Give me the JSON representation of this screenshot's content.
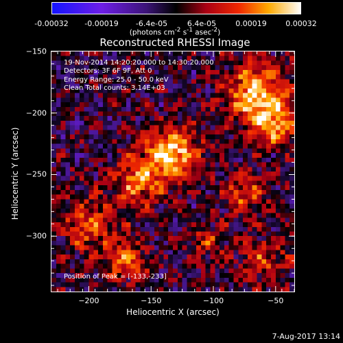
{
  "colorbar": {
    "tick_labels": [
      "-0.00032",
      "-0.00019",
      "-6.4e-05",
      "6.4e-05",
      "0.00019",
      "0.00032"
    ],
    "units_html": "(photons cm<sup>-2</sup> s<sup>-1</sup> asec<sup>-2</sup>)"
  },
  "chart_data": {
    "type": "heatmap",
    "title": "Reconstructed RHESSI Image",
    "xlabel": "Heliocentric X (arcsec)",
    "ylabel": "Heliocentric Y (arcsec)",
    "xlim": [
      -230,
      -35
    ],
    "ylim": [
      -345,
      -150
    ],
    "x_ticks": [
      -200,
      -150,
      -100,
      -50
    ],
    "y_ticks": [
      -150,
      -200,
      -250,
      -300
    ],
    "colorbar_range": [
      -0.00032,
      0.00032
    ],
    "peak": [
      -133,
      -233
    ],
    "annotations": [
      "19-Nov-2014 14:20:20.000 to 14:30:20.000",
      "Detectors: 3F 6F 9F, Att 0",
      "Energy Range: 25.0 - 50.0 keV",
      "Clean     Total counts: 3.14E+03"
    ],
    "peak_label": "Position of Peak = [-133,-233]"
  },
  "footer": {
    "timestamp": "7-Aug-2017 13:14"
  }
}
